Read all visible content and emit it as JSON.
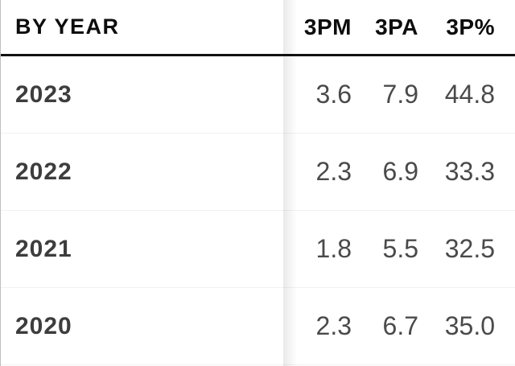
{
  "table": {
    "title": "BY YEAR",
    "columns": [
      "3PM",
      "3PA",
      "3P%"
    ],
    "rows": [
      {
        "year": "2023",
        "values": [
          "3.6",
          "7.9",
          "44.8"
        ]
      },
      {
        "year": "2022",
        "values": [
          "2.3",
          "6.9",
          "33.3"
        ]
      },
      {
        "year": "2021",
        "values": [
          "1.8",
          "5.5",
          "32.5"
        ]
      },
      {
        "year": "2020",
        "values": [
          "2.3",
          "6.7",
          "35.0"
        ]
      }
    ]
  },
  "colors": {
    "background": "#ffffff",
    "header_text": "#0d0d0d",
    "header_rule": "#111111",
    "year_text": "#3d3d3d",
    "value_text": "#4a4a4a",
    "row_separator": "#f1f1f1",
    "left_edge_border": "#bfbfbf"
  }
}
